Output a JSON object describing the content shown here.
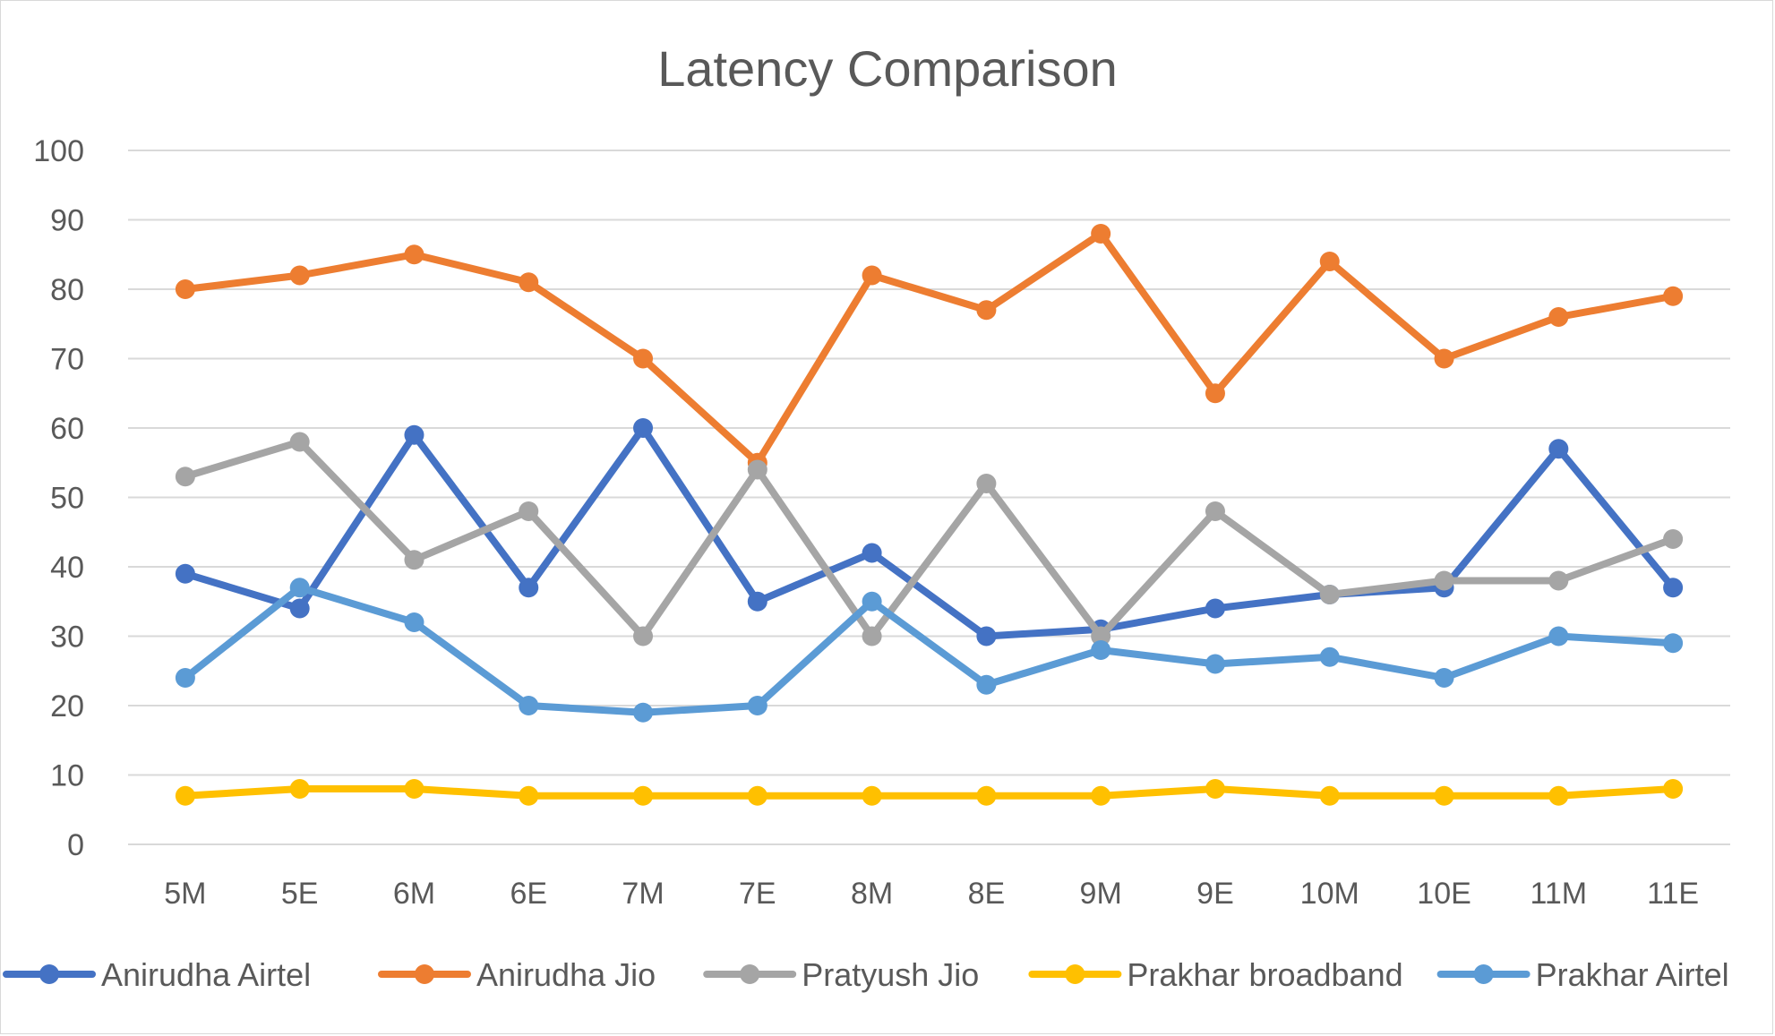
{
  "chart_data": {
    "type": "line",
    "title": "Latency Comparison",
    "xlabel": "",
    "ylabel": "",
    "categories": [
      "5M",
      "5E",
      "6M",
      "6E",
      "7M",
      "7E",
      "8M",
      "8E",
      "9M",
      "9E",
      "10M",
      "10E",
      "11M",
      "11E"
    ],
    "ylim": [
      0,
      100
    ],
    "yticks": [
      0,
      10,
      20,
      30,
      40,
      50,
      60,
      70,
      80,
      90,
      100
    ],
    "grid": true,
    "legend_position": "bottom",
    "series": [
      {
        "name": "Anirudha Airtel",
        "color": "#4472C4",
        "values": [
          39,
          34,
          59,
          37,
          60,
          35,
          42,
          30,
          31,
          34,
          36,
          37,
          57,
          37
        ]
      },
      {
        "name": "Anirudha Jio",
        "color": "#ED7D31",
        "values": [
          80,
          82,
          85,
          81,
          70,
          55,
          82,
          77,
          88,
          65,
          84,
          70,
          76,
          79
        ]
      },
      {
        "name": "Pratyush Jio",
        "color": "#A5A5A5",
        "values": [
          53,
          58,
          41,
          48,
          30,
          54,
          30,
          52,
          30,
          48,
          36,
          38,
          38,
          44
        ]
      },
      {
        "name": "Prakhar broadband",
        "color": "#FFC000",
        "values": [
          7,
          8,
          8,
          7,
          7,
          7,
          7,
          7,
          7,
          8,
          7,
          7,
          7,
          8
        ]
      },
      {
        "name": "Prakhar Airtel",
        "color": "#5B9BD5",
        "values": [
          24,
          37,
          32,
          20,
          19,
          20,
          35,
          23,
          28,
          26,
          27,
          24,
          30,
          29
        ]
      }
    ]
  }
}
